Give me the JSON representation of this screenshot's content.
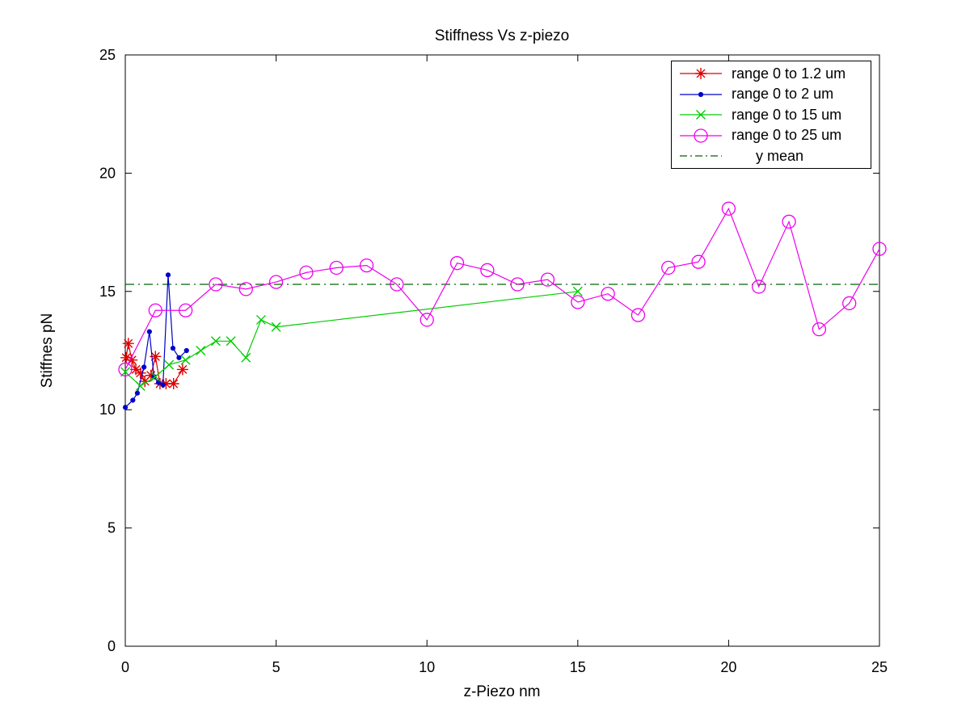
{
  "chart_data": {
    "type": "line",
    "title": "Stiffness Vs z-piezo",
    "xlabel": "z-Piezo nm",
    "ylabel": "Stiffnes pN",
    "xlim": [
      0,
      25
    ],
    "ylim": [
      0,
      25
    ],
    "xticks": [
      0,
      5,
      10,
      15,
      20,
      25
    ],
    "yticks": [
      0,
      5,
      10,
      15,
      20,
      25
    ],
    "grid": false,
    "legend_position": "top-right",
    "y_mean_value": 15.3,
    "series": [
      {
        "name": "range 0 to 1.2 um",
        "color": "#e00000",
        "marker": "asterisk",
        "line": "solid",
        "points": [
          [
            0.03,
            12.2
          ],
          [
            0.1,
            12.8
          ],
          [
            0.22,
            12.1
          ],
          [
            0.35,
            11.7
          ],
          [
            0.5,
            11.55
          ],
          [
            0.65,
            11.2
          ],
          [
            0.85,
            11.45
          ],
          [
            1.0,
            12.25
          ],
          [
            1.15,
            11.1
          ],
          [
            1.35,
            11.1
          ],
          [
            1.6,
            11.1
          ],
          [
            1.9,
            11.7
          ]
        ]
      },
      {
        "name": "range 0 to 2 um",
        "color": "#0000cc",
        "marker": "dot",
        "line": "solid",
        "points": [
          [
            0,
            10.1
          ],
          [
            0.25,
            10.4
          ],
          [
            0.4,
            10.7
          ],
          [
            0.62,
            11.8
          ],
          [
            0.8,
            13.3
          ],
          [
            0.95,
            11.4
          ],
          [
            1.1,
            11.15
          ],
          [
            1.25,
            11.05
          ],
          [
            1.42,
            15.7
          ],
          [
            1.58,
            12.6
          ],
          [
            1.78,
            12.2
          ],
          [
            2.03,
            12.5
          ]
        ]
      },
      {
        "name": "range 0 to 15 um",
        "color": "#00cc00",
        "marker": "x",
        "line": "solid",
        "points": [
          [
            0,
            11.6
          ],
          [
            0.5,
            11.0
          ],
          [
            1.0,
            11.4
          ],
          [
            1.45,
            11.9
          ],
          [
            2.0,
            12.1
          ],
          [
            2.5,
            12.5
          ],
          [
            3.0,
            12.9
          ],
          [
            3.5,
            12.9
          ],
          [
            4.0,
            12.2
          ],
          [
            4.5,
            13.8
          ],
          [
            5.0,
            13.5
          ],
          [
            15.0,
            15.0
          ]
        ]
      },
      {
        "name": "range 0 to 25 um",
        "color": "#ee00ee",
        "marker": "circle",
        "line": "solid",
        "points": [
          [
            0,
            11.7
          ],
          [
            1,
            14.2
          ],
          [
            2,
            14.2
          ],
          [
            3,
            15.3
          ],
          [
            4,
            15.1
          ],
          [
            5,
            15.4
          ],
          [
            6,
            15.8
          ],
          [
            7,
            16.0
          ],
          [
            8,
            16.1
          ],
          [
            9,
            15.3
          ],
          [
            10,
            13.8
          ],
          [
            11,
            16.2
          ],
          [
            12,
            15.9
          ],
          [
            13,
            15.3
          ],
          [
            14,
            15.5
          ],
          [
            15,
            14.55
          ],
          [
            16,
            14.9
          ],
          [
            17,
            14.0
          ],
          [
            18,
            16.0
          ],
          [
            19,
            16.25
          ],
          [
            20,
            18.5
          ],
          [
            21,
            15.2
          ],
          [
            22,
            17.95
          ],
          [
            23,
            13.4
          ],
          [
            24,
            14.5
          ],
          [
            25,
            16.8
          ]
        ]
      },
      {
        "name": "y mean",
        "color": "#006400",
        "marker": "none",
        "line": "dashdot",
        "legend_indent": true,
        "points": [
          [
            0,
            15.3
          ],
          [
            25,
            15.3
          ]
        ]
      }
    ]
  }
}
